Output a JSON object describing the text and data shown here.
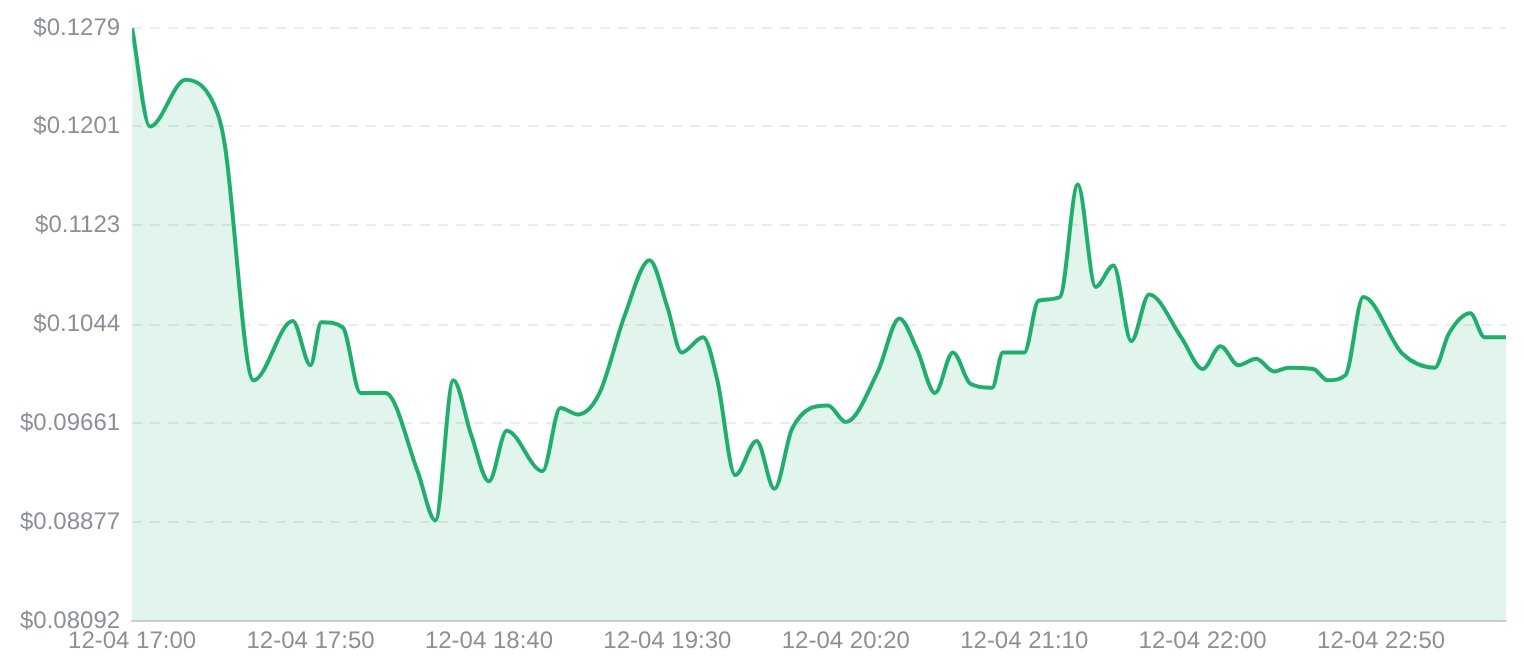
{
  "chart_data": {
    "type": "area",
    "color": "#1fae6c",
    "marker": "none",
    "grid": "y",
    "legend": false,
    "x": [
      "--12-04T17:00",
      "--12-04T17:05",
      "--12-04T17:15",
      "--12-04T17:24",
      "--12-04T17:26",
      "--12-04T17:34",
      "--12-04T17:45",
      "--12-04T17:50",
      "--12-04T17:53",
      "--12-04T17:59",
      "--12-04T18:04",
      "--12-04T18:11",
      "--12-04T18:20",
      "--12-04T18:25",
      "--12-04T18:30",
      "--12-04T18:35",
      "--12-04T18:40",
      "--12-04T18:45",
      "--12-04T18:55",
      "--12-04T19:00",
      "--12-04T19:05",
      "--12-04T19:11",
      "--12-04T19:18",
      "--12-04T19:25",
      "--12-04T19:30",
      "--12-04T19:34",
      "--12-04T19:40",
      "--12-04T19:44",
      "--12-04T19:49",
      "--12-04T19:55",
      "--12-04T20:00",
      "--12-04T20:05",
      "--12-04T20:15",
      "--12-04T20:20",
      "--12-04T20:29",
      "--12-04T20:35",
      "--12-04T20:40",
      "--12-04T20:45",
      "--12-04T20:50",
      "--12-04T20:55",
      "--12-04T21:01",
      "--12-04T21:04",
      "--12-04T21:10",
      "--12-04T21:14",
      "--12-04T21:20",
      "--12-04T21:25",
      "--12-04T21:30",
      "--12-04T21:35",
      "--12-04T21:40",
      "--12-04T21:45",
      "--12-04T21:54",
      "--12-04T22:00",
      "--12-04T22:05",
      "--12-04T22:10",
      "--12-04T22:15",
      "--12-04T22:20",
      "--12-04T22:24",
      "--12-04T22:31",
      "--12-04T22:35",
      "--12-04T22:40",
      "--12-04T22:45",
      "--12-04T22:56",
      "--12-04T23:05",
      "--12-04T23:09",
      "--12-04T23:15",
      "--12-04T23:19",
      "--12-04T23:25"
    ],
    "values": [
      0.1279,
      0.1201,
      0.1238,
      0.1211,
      0.1186,
      0.1,
      0.1047,
      0.1012,
      0.1046,
      0.1042,
      0.099,
      0.099,
      0.0928,
      0.0889,
      0.1,
      0.0957,
      0.092,
      0.096,
      0.0928,
      0.0978,
      0.0973,
      0.099,
      0.1051,
      0.1095,
      0.1058,
      0.1022,
      0.1034,
      0.1,
      0.0925,
      0.0952,
      0.0914,
      0.0962,
      0.098,
      0.0967,
      0.1007,
      0.1049,
      0.1024,
      0.099,
      0.1022,
      0.0997,
      0.0994,
      0.1022,
      0.1022,
      0.1063,
      0.1066,
      0.1155,
      0.1074,
      0.1091,
      0.1031,
      0.1068,
      0.1034,
      0.1009,
      0.1027,
      0.1012,
      0.1017,
      0.1007,
      0.101,
      0.1009,
      0.1,
      0.1004,
      0.1066,
      0.1021,
      0.101,
      0.1037,
      0.1053,
      0.1034,
      0.1034
    ],
    "xlim": [
      "--12-04T17:00",
      "--12-04T23:25"
    ],
    "xticks": [
      {
        "value": "--12-04T17:00",
        "label": "12-04 17:00"
      },
      {
        "value": "--12-04T17:50",
        "label": "12-04 17:50"
      },
      {
        "value": "--12-04T18:40",
        "label": "12-04 18:40"
      },
      {
        "value": "--12-04T19:30",
        "label": "12-04 19:30"
      },
      {
        "value": "--12-04T20:20",
        "label": "12-04 20:20"
      },
      {
        "value": "--12-04T21:10",
        "label": "12-04 21:10"
      },
      {
        "value": "--12-04T22:00",
        "label": "12-04 22:00"
      },
      {
        "value": "--12-04T22:50",
        "label": "12-04 22:50"
      }
    ],
    "ylim": [
      0.08092,
      0.1279
    ],
    "yticks": [
      {
        "value": 0.08092,
        "label": "$0.08092"
      },
      {
        "value": 0.08877,
        "label": "$0.08877"
      },
      {
        "value": 0.09661,
        "label": "$0.09661"
      },
      {
        "value": 0.1044,
        "label": "$0.1044"
      },
      {
        "value": 0.1123,
        "label": "$0.1123"
      },
      {
        "value": 0.1201,
        "label": "$0.1201"
      },
      {
        "value": 0.1279,
        "label": "$0.1279"
      }
    ]
  }
}
